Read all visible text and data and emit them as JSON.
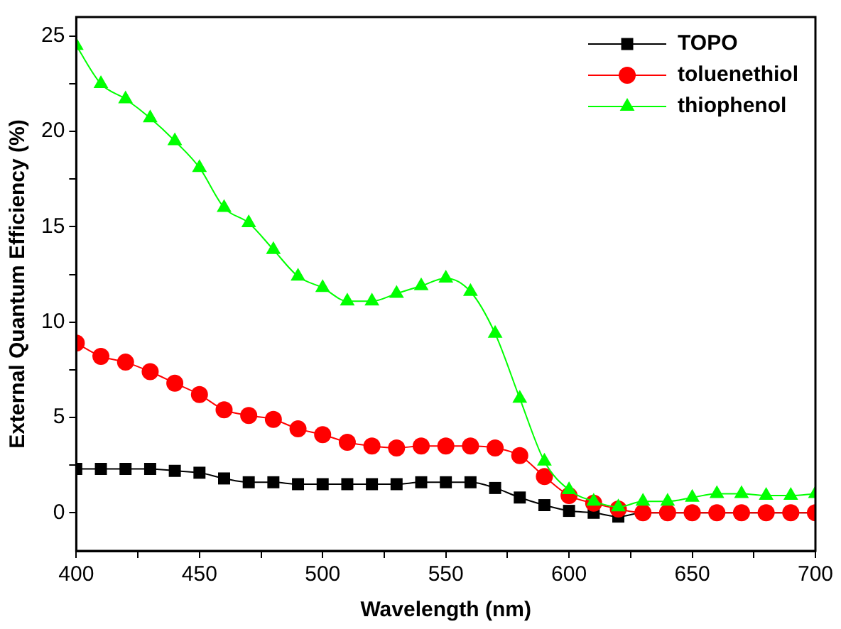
{
  "chart_data": {
    "type": "line",
    "xlabel": "Wavelength (nm)",
    "ylabel": "External Quantum Efficiency (%)",
    "x": [
      400,
      410,
      420,
      430,
      440,
      450,
      460,
      470,
      480,
      490,
      500,
      510,
      520,
      530,
      540,
      550,
      560,
      570,
      580,
      590,
      600,
      610,
      620,
      630,
      640,
      650,
      660,
      670,
      680,
      690,
      700
    ],
    "series": [
      {
        "name": "TOPO",
        "color": "#000000",
        "marker": "square",
        "values": [
          2.3,
          2.3,
          2.3,
          2.3,
          2.2,
          2.1,
          1.8,
          1.6,
          1.6,
          1.5,
          1.5,
          1.5,
          1.5,
          1.5,
          1.6,
          1.6,
          1.6,
          1.3,
          0.8,
          0.4,
          0.1,
          0.0,
          -0.2,
          0,
          0,
          0,
          0,
          0,
          0,
          0,
          0
        ]
      },
      {
        "name": "toluenethiol",
        "color": "#ff0000",
        "marker": "circle",
        "values": [
          8.9,
          8.2,
          7.9,
          7.4,
          6.8,
          6.2,
          5.4,
          5.1,
          4.9,
          4.4,
          4.1,
          3.7,
          3.5,
          3.4,
          3.5,
          3.5,
          3.5,
          3.4,
          3.0,
          1.9,
          0.9,
          0.5,
          0.2,
          0,
          0,
          0,
          0,
          0,
          0,
          0,
          0
        ]
      },
      {
        "name": "thiophenol",
        "color": "#00ff00",
        "marker": "triangle",
        "values": [
          24.5,
          22.5,
          21.7,
          20.7,
          19.5,
          18.1,
          16.0,
          15.2,
          13.8,
          12.4,
          11.8,
          11.1,
          11.1,
          11.5,
          11.9,
          12.3,
          11.6,
          9.4,
          6.0,
          2.7,
          1.2,
          0.6,
          0.3,
          0.6,
          0.6,
          0.8,
          1.0,
          1.0,
          0.9,
          0.9,
          1.0
        ]
      }
    ],
    "xlim": [
      400,
      700
    ],
    "xticks": [
      400,
      {
        "value": 425,
        "label": null
      },
      450,
      {
        "value": 475,
        "label": null
      },
      500,
      {
        "value": 525,
        "label": null
      },
      550,
      {
        "value": 575,
        "label": null
      },
      600,
      {
        "value": 625,
        "label": null
      },
      650,
      {
        "value": 675,
        "label": null
      },
      700
    ],
    "ylim": [
      -2,
      26
    ],
    "yticks": [
      0,
      {
        "value": 2.5,
        "label": null
      },
      5,
      {
        "value": 7.5,
        "label": null
      },
      10,
      {
        "value": 12.5,
        "label": null
      },
      15,
      {
        "value": 17.5,
        "label": null
      },
      20,
      {
        "value": 22.5,
        "label": null
      },
      25
    ],
    "grid": false,
    "legend": "top right",
    "line_style": "solid"
  }
}
